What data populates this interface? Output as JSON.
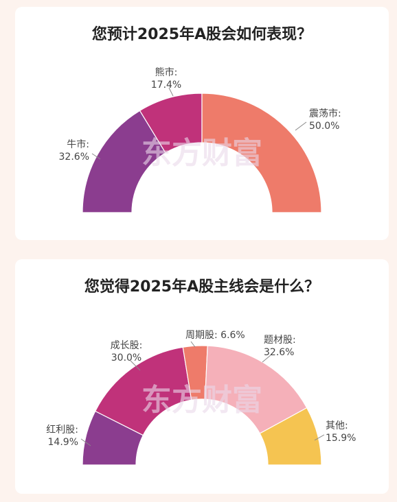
{
  "chart_data": [
    {
      "type": "pie",
      "title": "您预计2025年A股会如何表现？",
      "watermark": "东方财富",
      "slices": [
        {
          "label": "牛市:",
          "value": 32.6,
          "display": "32.6%",
          "color": "#8b3d8f"
        },
        {
          "label": "熊市:",
          "value": 17.4,
          "display": "17.4%",
          "color": "#c0327a"
        },
        {
          "label": "震荡市:",
          "value": 50.0,
          "display": "50.0%",
          "color": "#ee7b6a"
        }
      ]
    },
    {
      "type": "pie",
      "title": "您觉得2025年A股主线会是什么？",
      "watermark": "东方财富",
      "slices": [
        {
          "label": "红利股:",
          "value": 14.9,
          "display": "14.9%",
          "color": "#8b3d8f"
        },
        {
          "label": "成长股:",
          "value": 30.0,
          "display": "30.0%",
          "color": "#c0327a"
        },
        {
          "label": "周期股:",
          "value": 6.6,
          "display": "6.6%",
          "color": "#ee7b6a"
        },
        {
          "label": "题材股:",
          "value": 32.6,
          "display": "32.6%",
          "color": "#f5b0b9"
        },
        {
          "label": "其他:",
          "value": 15.9,
          "display": "15.9%",
          "color": "#f5c451"
        }
      ]
    }
  ]
}
